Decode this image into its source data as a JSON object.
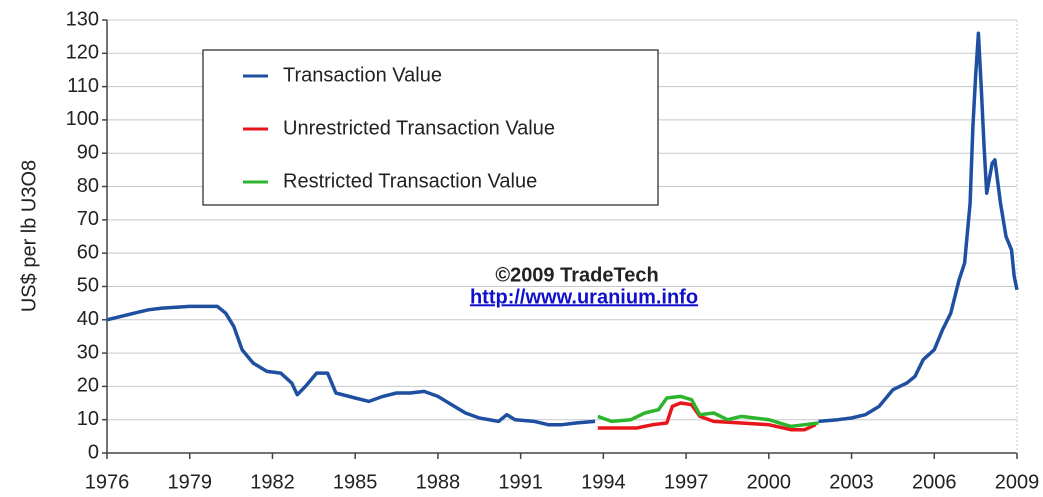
{
  "chart_data": {
    "type": "line",
    "y_label": "US$ per lb U3O8",
    "annotations": [
      "©2009 TradeTech",
      "http://www.uranium.info"
    ],
    "xlim": [
      1976,
      2009
    ],
    "xticks": [
      1976,
      1979,
      1982,
      1985,
      1988,
      1991,
      1994,
      1997,
      2000,
      2003,
      2006,
      2009
    ],
    "ylim": [
      0,
      130
    ],
    "yticks": [
      0,
      10,
      20,
      30,
      40,
      50,
      60,
      70,
      80,
      90,
      100,
      110,
      120,
      130
    ],
    "grid": true,
    "legend": "upper left",
    "series": [
      {
        "name": "Transaction Value",
        "color": "#1f4fa0",
        "x": [
          1976,
          1976.5,
          1977,
          1977.5,
          1978,
          1979,
          1980,
          1980.3,
          1980.6,
          1980.9,
          1981.3,
          1981.8,
          1982.3,
          1982.7,
          1982.9,
          1983.2,
          1983.6,
          1984,
          1984.3,
          1985,
          1985.5,
          1986,
          1986.5,
          1987,
          1987.5,
          1988,
          1988.5,
          1989,
          1989.5,
          1990.2,
          1990.5,
          1990.8,
          1991.5,
          1992,
          1992.5,
          1993,
          1993.7,
          1997,
          2001.8,
          2002.5,
          2003,
          2003.5,
          2004,
          2004.5,
          2005,
          2005.3,
          2005.6,
          2006,
          2006.3,
          2006.6,
          2006.9,
          2007.1,
          2007.3,
          2007.4,
          2007.5,
          2007.6,
          2007.7,
          2007.8,
          2007.9,
          2008.1,
          2008.2,
          2008.4,
          2008.6,
          2008.8,
          2008.9,
          2009
        ],
        "values": [
          40,
          41,
          42,
          43,
          43.5,
          44,
          44,
          42,
          38,
          31,
          27,
          24.5,
          24,
          21,
          17.5,
          20,
          24,
          24,
          18,
          16.5,
          15.5,
          17,
          18,
          18,
          18.5,
          17,
          14.5,
          12,
          10.5,
          9.5,
          11.5,
          10,
          9.5,
          8.5,
          8.5,
          9,
          9.5,
          null,
          9.5,
          10,
          10.5,
          11.5,
          14,
          19,
          21,
          23,
          28,
          31,
          37,
          42,
          52,
          57,
          75,
          98,
          113,
          126,
          110,
          93,
          78,
          87,
          88,
          75,
          65,
          61,
          53,
          49
        ]
      },
      {
        "name": "Unrestricted Transaction Value",
        "color": "#e8161c",
        "x": [
          1993.8,
          1994.5,
          1995.2,
          1995.8,
          1996.3,
          1996.5,
          1996.8,
          1997.2,
          1997.5,
          1998,
          1999,
          2000,
          2000.8,
          2001.3,
          2001.7
        ],
        "values": [
          7.5,
          7.5,
          7.5,
          8.5,
          9,
          14,
          15,
          14.5,
          11,
          9.5,
          9,
          8.5,
          7,
          7,
          8.5
        ]
      },
      {
        "name": "Restricted Transaction Value",
        "color": "#2cb52c",
        "x": [
          1993.8,
          1994.3,
          1995,
          1995.5,
          1996,
          1996.3,
          1996.8,
          1997.2,
          1997.5,
          1998,
          1998.5,
          1999,
          2000,
          2000.8,
          2001.3,
          2001.8
        ],
        "values": [
          11,
          9.5,
          10,
          12,
          13,
          16.5,
          17,
          16,
          11.5,
          12,
          10,
          11,
          10,
          8,
          8.5,
          9
        ]
      }
    ]
  }
}
